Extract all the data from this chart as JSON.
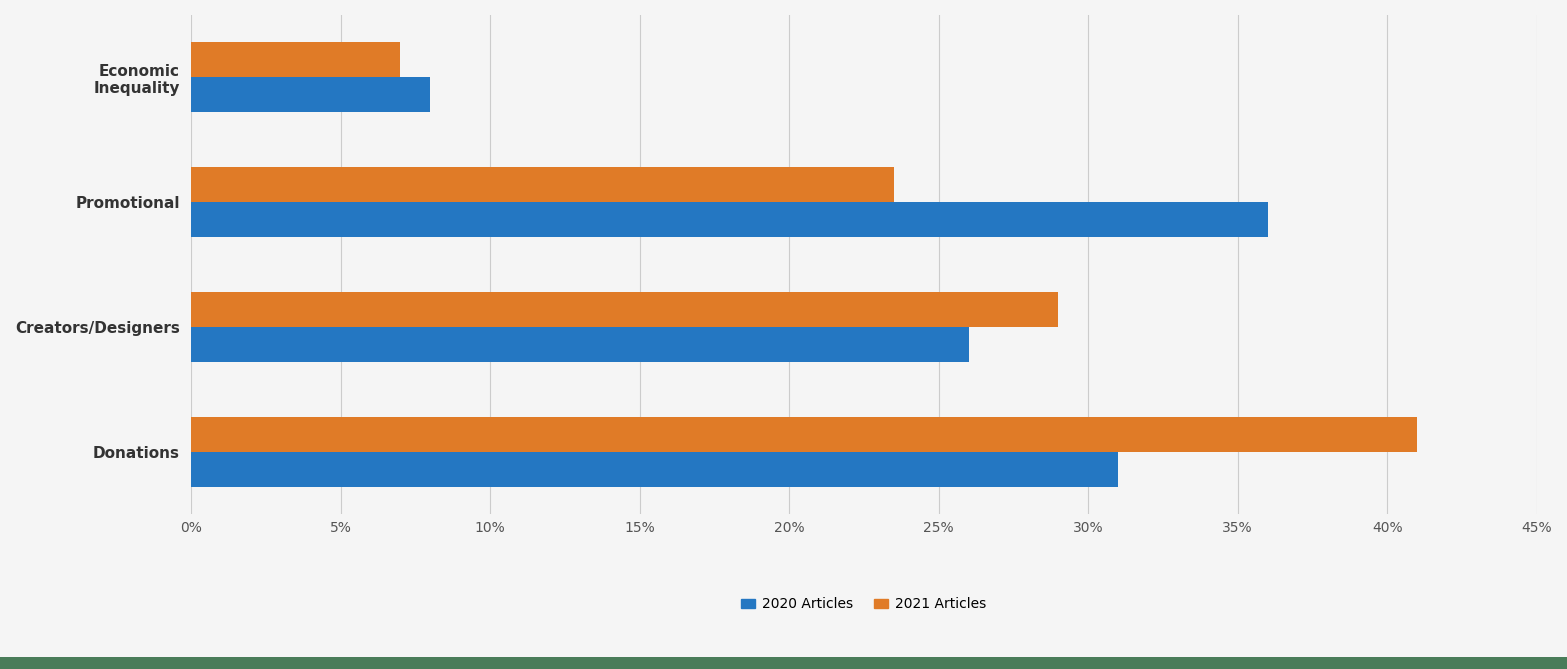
{
  "categories": [
    "Economic\nInequality",
    "Promotional",
    "Creators/Designers",
    "Donations"
  ],
  "values_2020": [
    0.08,
    0.36,
    0.26,
    0.31
  ],
  "values_2021": [
    0.07,
    0.235,
    0.29,
    0.41
  ],
  "color_2020": "#2477C2",
  "color_2021": "#E07B27",
  "legend_2020": "2020 Articles",
  "legend_2021": "2021 Articles",
  "xlim": [
    0,
    0.45
  ],
  "xticks": [
    0.0,
    0.05,
    0.1,
    0.15,
    0.2,
    0.25,
    0.3,
    0.35,
    0.4,
    0.45
  ],
  "xtick_labels": [
    "0%",
    "5%",
    "10%",
    "15%",
    "20%",
    "25%",
    "30%",
    "35%",
    "40%",
    "45%"
  ],
  "bar_height": 0.28,
  "background_color": "#f5f5f5",
  "grid_color": "#cccccc",
  "label_fontsize": 11,
  "tick_fontsize": 10,
  "legend_fontsize": 10,
  "bottom_bar_color": "#4a7c59"
}
